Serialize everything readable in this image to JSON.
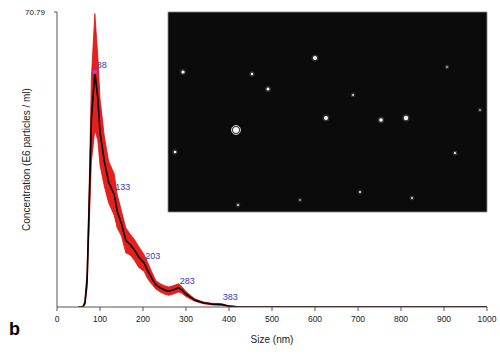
{
  "chart_data": {
    "type": "line",
    "panel_label": "b",
    "x_label": "Size (nm)",
    "y_label": "Concentration (E6 particles / ml)",
    "x": [
      50,
      60,
      65,
      70,
      75,
      80,
      88,
      95,
      100,
      110,
      120,
      133,
      140,
      150,
      160,
      170,
      180,
      190,
      203,
      210,
      220,
      230,
      240,
      250,
      260,
      270,
      283,
      290,
      300,
      320,
      340,
      360,
      383,
      400,
      420,
      450,
      500,
      600,
      800,
      1000
    ],
    "series": [
      {
        "color": "#000000",
        "values": [
          0,
          0,
          1,
          6.5,
          25,
          45,
          56.4,
          50,
          42,
          35,
          30,
          27,
          23,
          20,
          16,
          15,
          13.7,
          12,
          10.5,
          8.9,
          7,
          5.3,
          4.6,
          4.1,
          3.8,
          4.1,
          4.6,
          4.1,
          3.1,
          1.7,
          1,
          0.7,
          0.6,
          0.2,
          0.05,
          0,
          0,
          0,
          0,
          0
        ],
        "error": [
          0,
          0,
          0.5,
          2,
          5,
          10,
          14,
          10,
          8,
          6,
          5,
          5,
          4,
          3,
          3,
          2.5,
          2.5,
          2.5,
          2,
          2,
          1.5,
          1,
          1,
          1,
          1,
          1,
          1,
          0.8,
          0.6,
          0.3,
          0.2,
          0.2,
          0.2,
          0.1,
          0,
          0,
          0,
          0,
          0,
          0
        ]
      }
    ],
    "annotations": [
      {
        "x": 88,
        "label": "88"
      },
      {
        "x": 133,
        "label": "133"
      },
      {
        "x": 203,
        "label": "203"
      },
      {
        "x": 283,
        "label": "283"
      },
      {
        "x": 383,
        "label": "383"
      }
    ],
    "xlim": [
      0,
      1000
    ],
    "xticks": [
      0,
      100,
      200,
      300,
      400,
      500,
      600,
      700,
      800,
      900,
      1000
    ],
    "ylim": [
      0,
      70.79
    ],
    "yticks": [
      70.79
    ],
    "grid": false
  }
}
